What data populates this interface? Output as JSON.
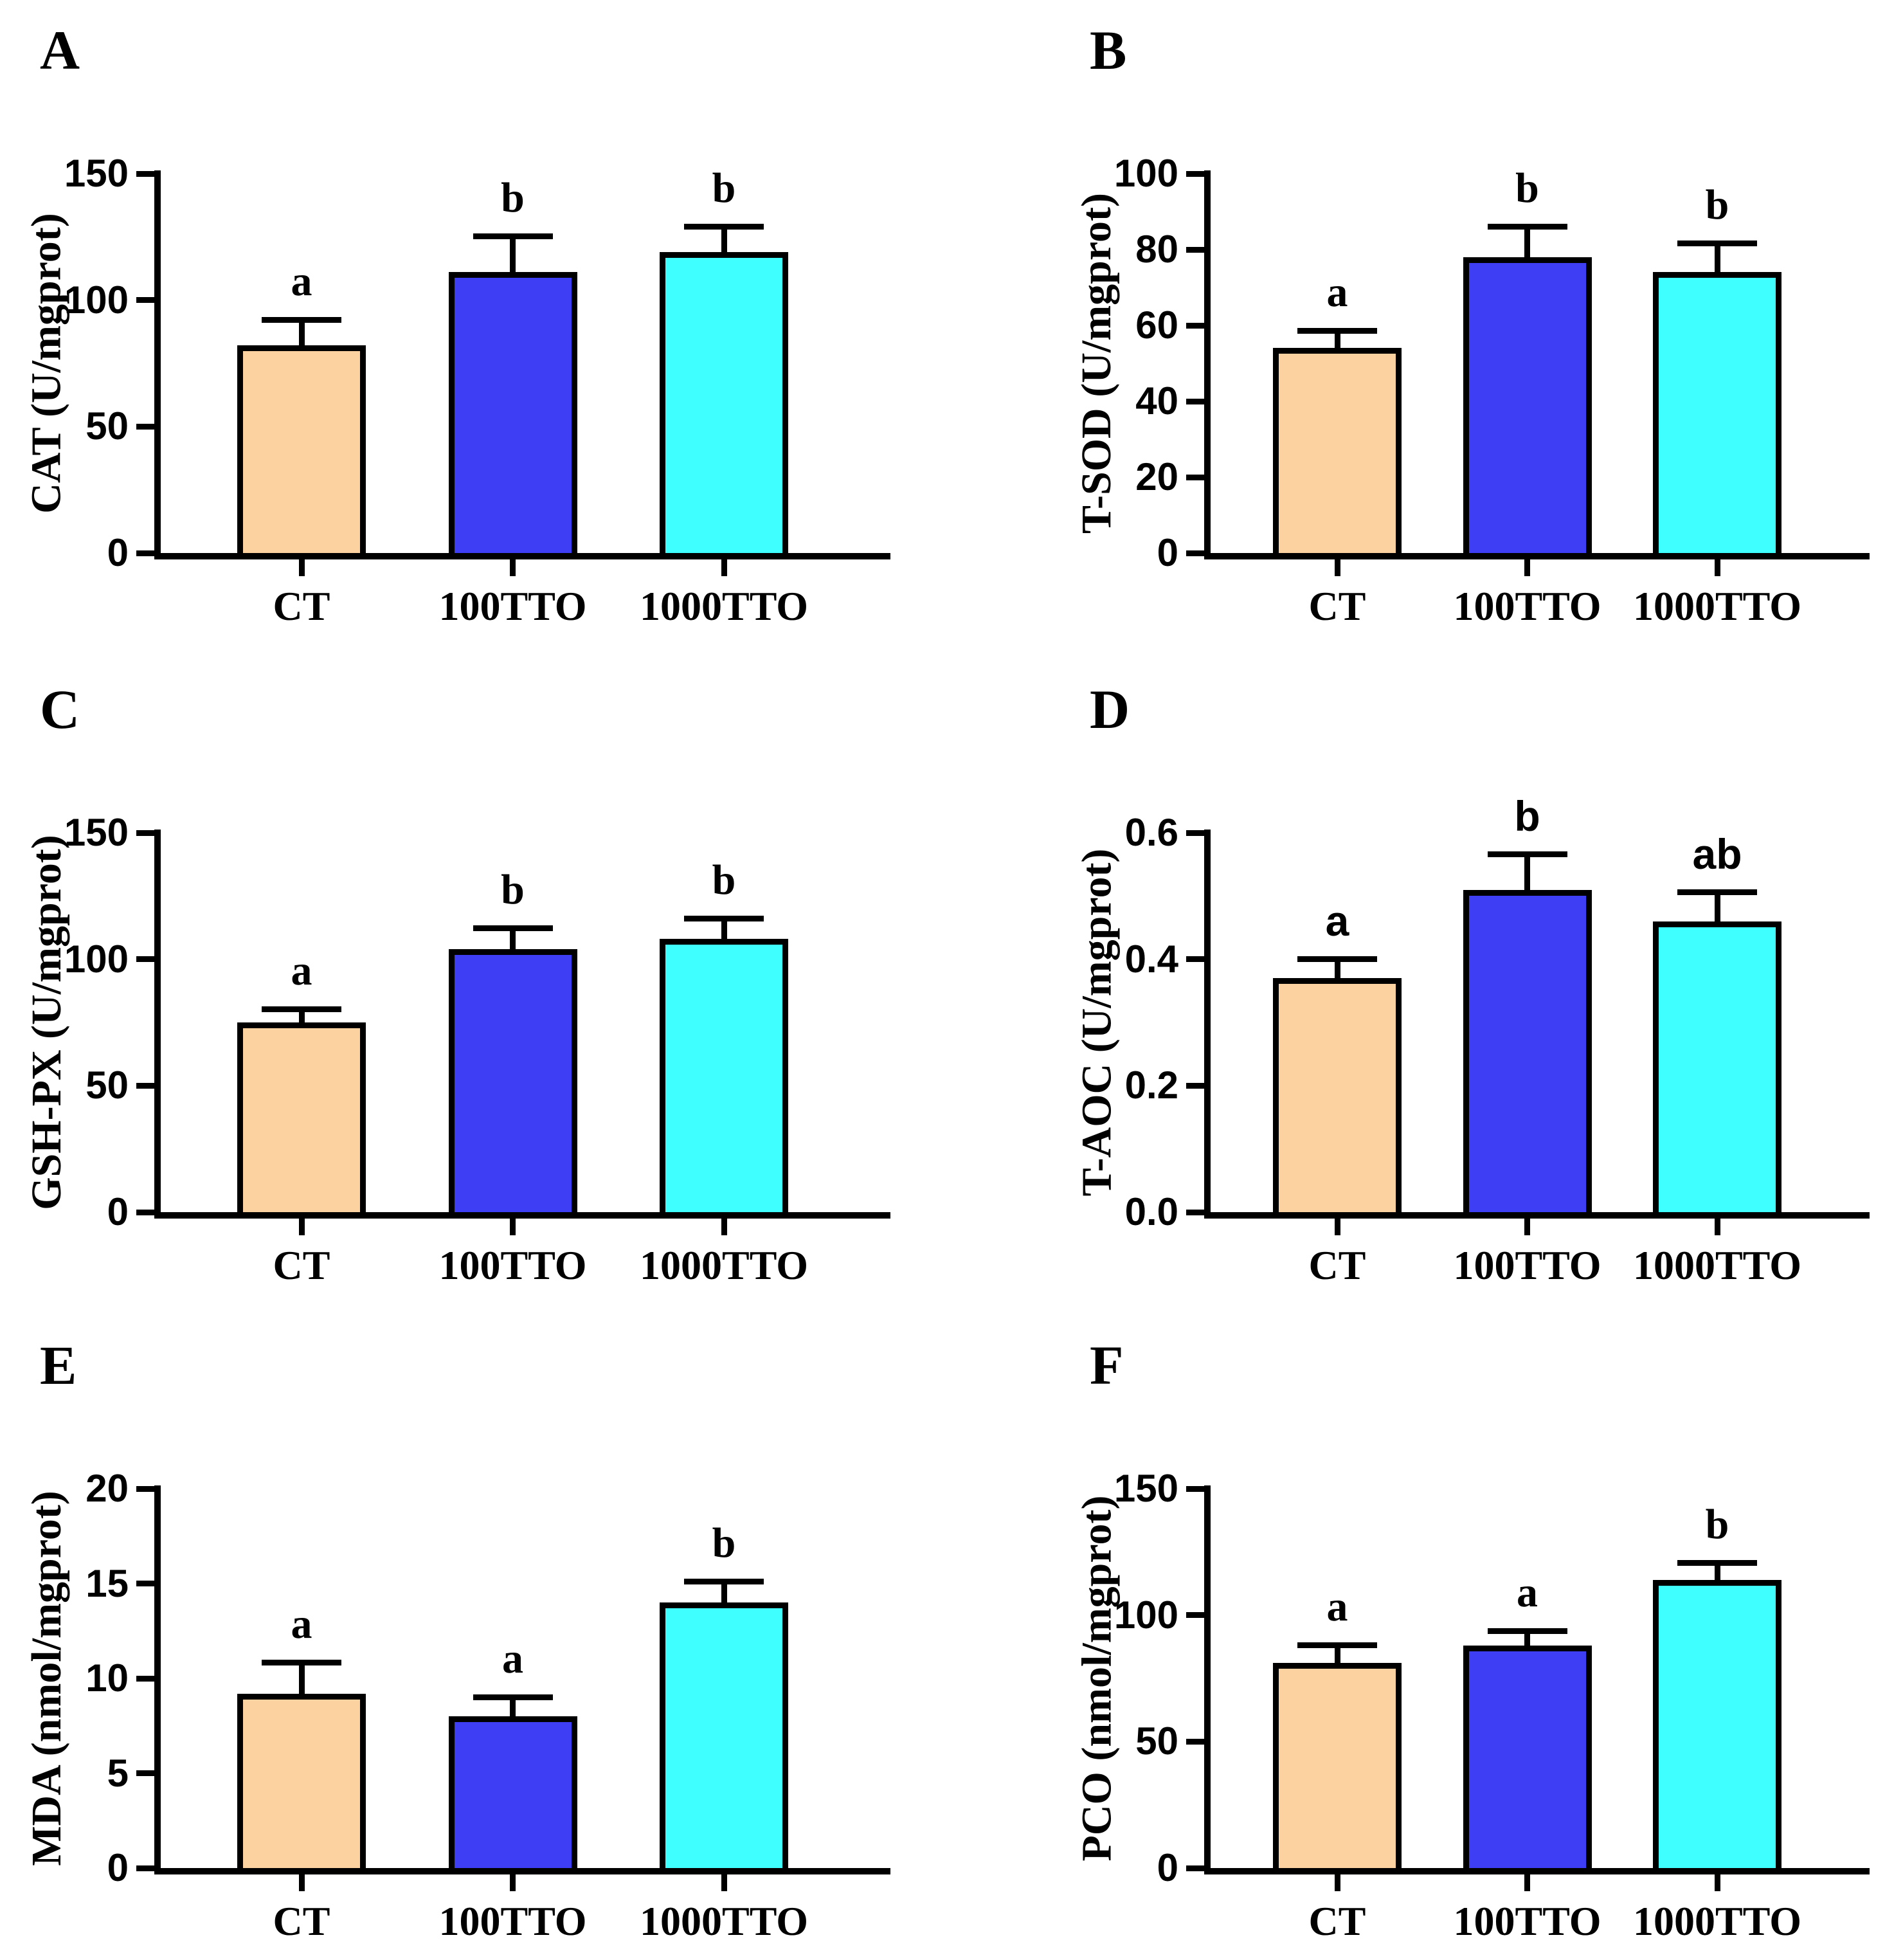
{
  "figure": {
    "background": "#FFFFFF",
    "bar_colors": [
      "#FCD2A0",
      "#3E3EF5",
      "#40FFFF"
    ],
    "bar_border_color": "#000000",
    "axis_color": "#000000"
  },
  "chart_data": [
    {
      "type": "bar",
      "panel": "A",
      "ylabel": "CAT (U/mgprot)",
      "categories": [
        "CT",
        "100TTO",
        "1000TTO"
      ],
      "values": [
        82,
        111,
        119
      ],
      "errors_upper": [
        10,
        14,
        10
      ],
      "significance_letters": [
        "a",
        "b",
        "b"
      ],
      "ylim": [
        0,
        150
      ],
      "yticks": [
        0,
        50,
        100,
        150
      ],
      "ytick_labels": [
        "0",
        "50",
        "100",
        "150"
      ]
    },
    {
      "type": "bar",
      "panel": "B",
      "ylabel": "T-SOD (U/mgprot)",
      "categories": [
        "CT",
        "100TTO",
        "1000TTO"
      ],
      "values": [
        54,
        78,
        74
      ],
      "errors_upper": [
        4.5,
        8,
        7.5
      ],
      "significance_letters": [
        "a",
        "b",
        "b"
      ],
      "ylim": [
        0,
        100
      ],
      "yticks": [
        0,
        20,
        40,
        60,
        80,
        100
      ],
      "ytick_labels": [
        "0",
        "20",
        "40",
        "60",
        "80",
        "100"
      ]
    },
    {
      "type": "bar",
      "panel": "C",
      "ylabel": "GSH-PX (U/mgprot)",
      "categories": [
        "CT",
        "100TTO",
        "1000TTO"
      ],
      "values": [
        75,
        104,
        108
      ],
      "errors_upper": [
        5,
        8,
        8
      ],
      "significance_letters": [
        "a",
        "b",
        "b"
      ],
      "ylim": [
        0,
        150
      ],
      "yticks": [
        0,
        50,
        100,
        150
      ],
      "ytick_labels": [
        "0",
        "50",
        "100",
        "150"
      ]
    },
    {
      "type": "bar",
      "panel": "D",
      "ylabel": "T-AOC (U/mgprot)",
      "categories": [
        "CT",
        "100TTO",
        "1000TTO"
      ],
      "values": [
        0.37,
        0.51,
        0.46
      ],
      "errors_upper": [
        0.03,
        0.055,
        0.045
      ],
      "significance_letters": [
        "a",
        "b",
        "ab"
      ],
      "ylim": [
        0,
        0.6
      ],
      "yticks": [
        0,
        0.2,
        0.4,
        0.6
      ],
      "ytick_labels": [
        "0.0",
        "0.2",
        "0.4",
        "0.6"
      ]
    },
    {
      "type": "bar",
      "panel": "E",
      "ylabel": "MDA (nmol/mgprot)",
      "categories": [
        "CT",
        "100TTO",
        "1000TTO"
      ],
      "values": [
        9.2,
        8.0,
        14.0
      ],
      "errors_upper": [
        1.6,
        1.0,
        1.1
      ],
      "significance_letters": [
        "a",
        "a",
        "b"
      ],
      "ylim": [
        0,
        20
      ],
      "yticks": [
        0,
        5,
        10,
        15,
        20
      ],
      "ytick_labels": [
        "0",
        "5",
        "10",
        "15",
        "20"
      ]
    },
    {
      "type": "bar",
      "panel": "F",
      "ylabel": "PCO (nmol/mgprot)",
      "categories": [
        "CT",
        "100TTO",
        "1000TTO"
      ],
      "values": [
        81,
        88,
        114
      ],
      "errors_upper": [
        7,
        5.5,
        6.5
      ],
      "significance_letters": [
        "a",
        "a",
        "b"
      ],
      "ylim": [
        0,
        150
      ],
      "yticks": [
        0,
        50,
        100,
        150
      ],
      "ytick_labels": [
        "0",
        "50",
        "100",
        "150"
      ]
    }
  ]
}
